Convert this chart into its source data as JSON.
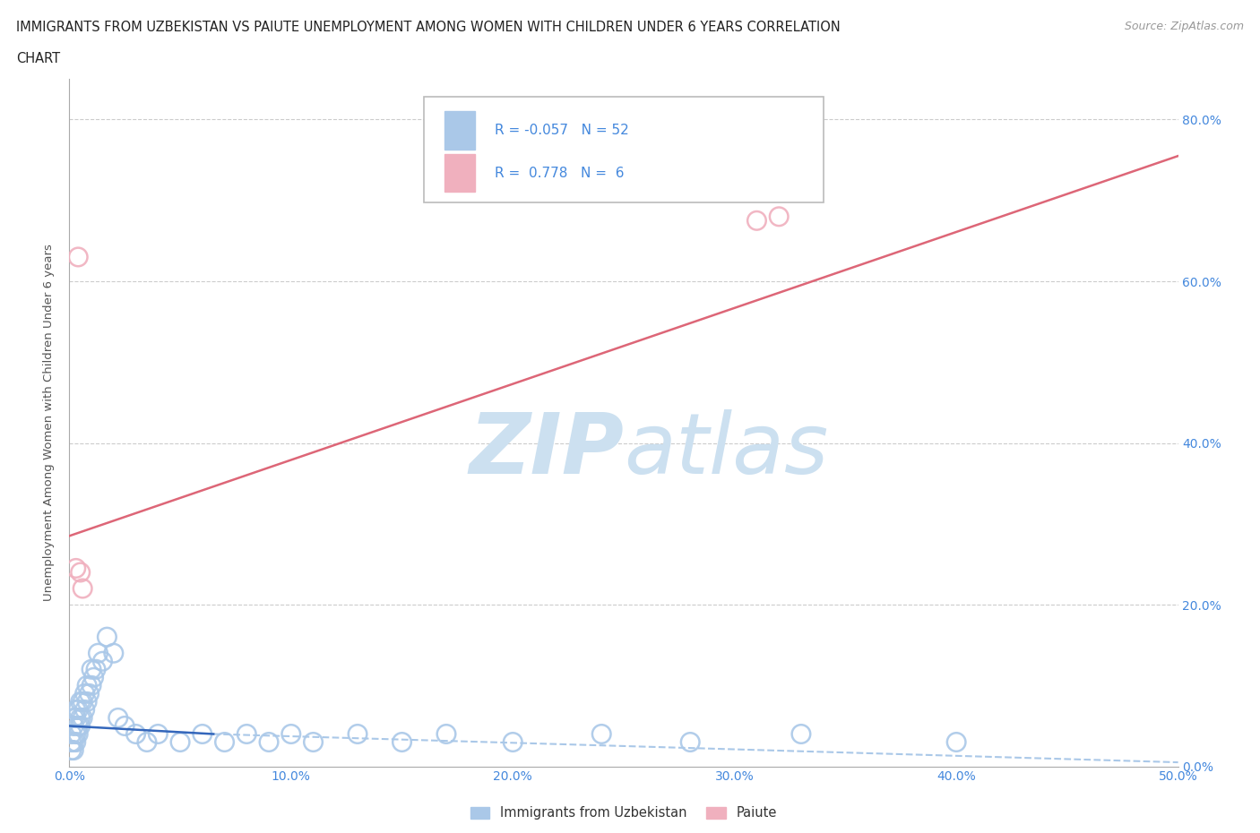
{
  "title_line1": "IMMIGRANTS FROM UZBEKISTAN VS PAIUTE UNEMPLOYMENT AMONG WOMEN WITH CHILDREN UNDER 6 YEARS CORRELATION",
  "title_line2": "CHART",
  "source_text": "Source: ZipAtlas.com",
  "xlabel_ticks": [
    "0.0%",
    "10.0%",
    "20.0%",
    "30.0%",
    "40.0%",
    "50.0%"
  ],
  "ylabel_ticks": [
    "0.0%",
    "20.0%",
    "40.0%",
    "60.0%",
    "80.0%"
  ],
  "ylabel_label": "Unemployment Among Women with Children Under 6 years",
  "legend_entry1_label": "Immigrants from Uzbekistan",
  "legend_entry2_label": "Paiute",
  "legend_R1": "-0.057",
  "legend_N1": "52",
  "legend_R2": "0.778",
  "legend_N2": "6",
  "blue_scatter_color": "#aac8e8",
  "pink_scatter_color": "#f0b0be",
  "blue_line_color": "#3366bb",
  "pink_line_color": "#dd6677",
  "blue_dash_color": "#aac8e8",
  "tick_color": "#4488dd",
  "grid_color": "#cccccc",
  "watermark_color": "#cce0f0",
  "xlim": [
    0.0,
    0.5
  ],
  "ylim": [
    0.0,
    0.85
  ],
  "blue_scatter_x": [
    0.001,
    0.001,
    0.001,
    0.002,
    0.002,
    0.002,
    0.002,
    0.003,
    0.003,
    0.003,
    0.003,
    0.004,
    0.004,
    0.004,
    0.005,
    0.005,
    0.005,
    0.006,
    0.006,
    0.007,
    0.007,
    0.008,
    0.008,
    0.009,
    0.01,
    0.01,
    0.011,
    0.012,
    0.013,
    0.015,
    0.017,
    0.02,
    0.022,
    0.025,
    0.03,
    0.035,
    0.04,
    0.05,
    0.06,
    0.07,
    0.08,
    0.09,
    0.1,
    0.11,
    0.13,
    0.15,
    0.17,
    0.2,
    0.24,
    0.28,
    0.33,
    0.4
  ],
  "blue_scatter_y": [
    0.02,
    0.03,
    0.04,
    0.02,
    0.03,
    0.05,
    0.06,
    0.03,
    0.04,
    0.06,
    0.07,
    0.04,
    0.05,
    0.07,
    0.05,
    0.06,
    0.08,
    0.06,
    0.08,
    0.07,
    0.09,
    0.08,
    0.1,
    0.09,
    0.1,
    0.12,
    0.11,
    0.12,
    0.14,
    0.13,
    0.16,
    0.14,
    0.06,
    0.05,
    0.04,
    0.03,
    0.04,
    0.03,
    0.04,
    0.03,
    0.04,
    0.03,
    0.04,
    0.03,
    0.04,
    0.03,
    0.04,
    0.03,
    0.04,
    0.03,
    0.04,
    0.03
  ],
  "pink_scatter_x": [
    0.003,
    0.004,
    0.005,
    0.006,
    0.31,
    0.32
  ],
  "pink_scatter_y": [
    0.245,
    0.63,
    0.24,
    0.22,
    0.675,
    0.68
  ],
  "blue_solid_line_x": [
    0.0,
    0.065
  ],
  "blue_solid_line_y": [
    0.05,
    0.04
  ],
  "blue_dash_line_x": [
    0.065,
    0.5
  ],
  "blue_dash_line_y": [
    0.04,
    0.005
  ],
  "pink_line_x": [
    0.0,
    0.5
  ],
  "pink_line_y": [
    0.285,
    0.755
  ]
}
